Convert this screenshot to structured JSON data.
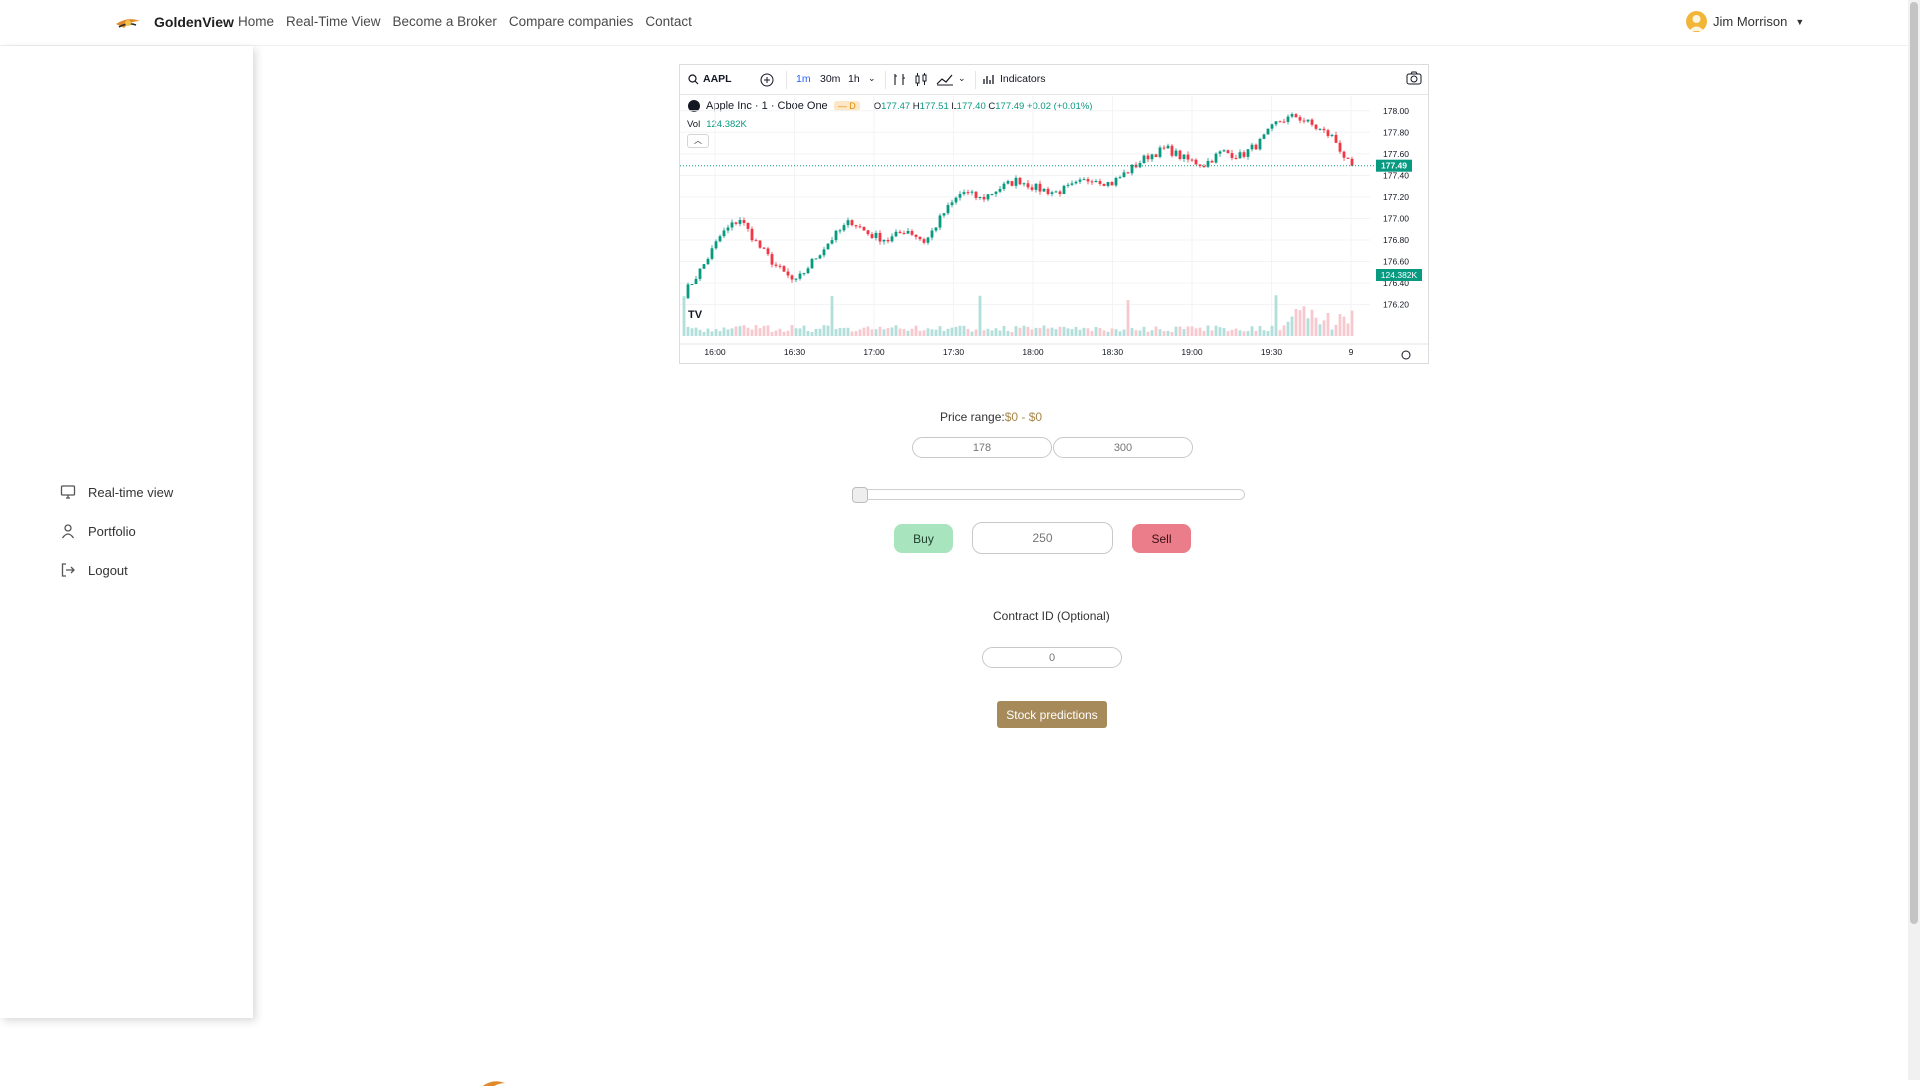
{
  "brand": {
    "name": "GoldenView"
  },
  "nav": {
    "links": [
      "Home",
      "Real-Time View",
      "Become a Broker",
      "Compare companies",
      "Contact"
    ]
  },
  "user": {
    "name": "Jim Morrison"
  },
  "sidebar": {
    "items": [
      {
        "label": "Real-time view",
        "icon": "monitor-icon"
      },
      {
        "label": "Portfolio",
        "icon": "user-icon"
      },
      {
        "label": "Logout",
        "icon": "logout-icon"
      }
    ]
  },
  "chart": {
    "symbol": "AAPL",
    "intervals": [
      "1m",
      "30m",
      "1h"
    ],
    "indicators_label": "Indicators",
    "title": "Apple Inc · 1 · Cboe One",
    "badge": "D",
    "ohlc": {
      "o_label": "O",
      "o": "177.47",
      "h_label": "H",
      "h": "177.51",
      "l_label": "L",
      "l": "177.40",
      "c_label": "C",
      "c": "177.49",
      "change": "+0.02 (+0.01%)"
    },
    "vol_label": "Vol",
    "vol_value": "124.382K",
    "last_price": "177.49",
    "vol_tag": "124.382K",
    "logo_text": "TV",
    "colors": {
      "up": "#089981",
      "down": "#f23645",
      "volume": "#b2dfdb"
    }
  },
  "chart_data": {
    "type": "candlestick",
    "x_ticks": [
      "16:00",
      "16:30",
      "17:00",
      "17:30",
      "18:00",
      "18:30",
      "19:00",
      "19:30",
      "9"
    ],
    "y_ticks": [
      "178.00",
      "177.80",
      "177.60",
      "177.40",
      "177.20",
      "177.00",
      "176.80",
      "176.60",
      "176.40",
      "176.20"
    ],
    "ylim": [
      176.15,
      178.1
    ],
    "series": [
      {
        "name": "AAPL",
        "values": [
          176.3,
          176.55,
          176.85,
          177.0,
          176.75,
          176.55,
          176.4,
          176.62,
          176.82,
          176.98,
          176.85,
          176.8,
          176.9,
          176.78,
          177.05,
          177.25,
          177.18,
          177.28,
          177.36,
          177.28,
          177.24,
          177.3,
          177.38,
          177.32,
          177.45,
          177.58,
          177.65,
          177.55,
          177.5,
          177.62,
          177.58,
          177.7,
          177.9,
          177.95,
          177.85,
          177.75,
          177.45
        ]
      }
    ]
  },
  "form": {
    "price_range_label": "Price range:",
    "price_range_value": "$0 - $0",
    "min_placeholder": "178",
    "max_placeholder": "300",
    "slider_value": 0,
    "buy_label": "Buy",
    "sell_label": "Sell",
    "qty_placeholder": "250",
    "contract_label": "Contract ID (Optional)",
    "contract_placeholder": "0",
    "predictions_label": "Stock predictions"
  }
}
